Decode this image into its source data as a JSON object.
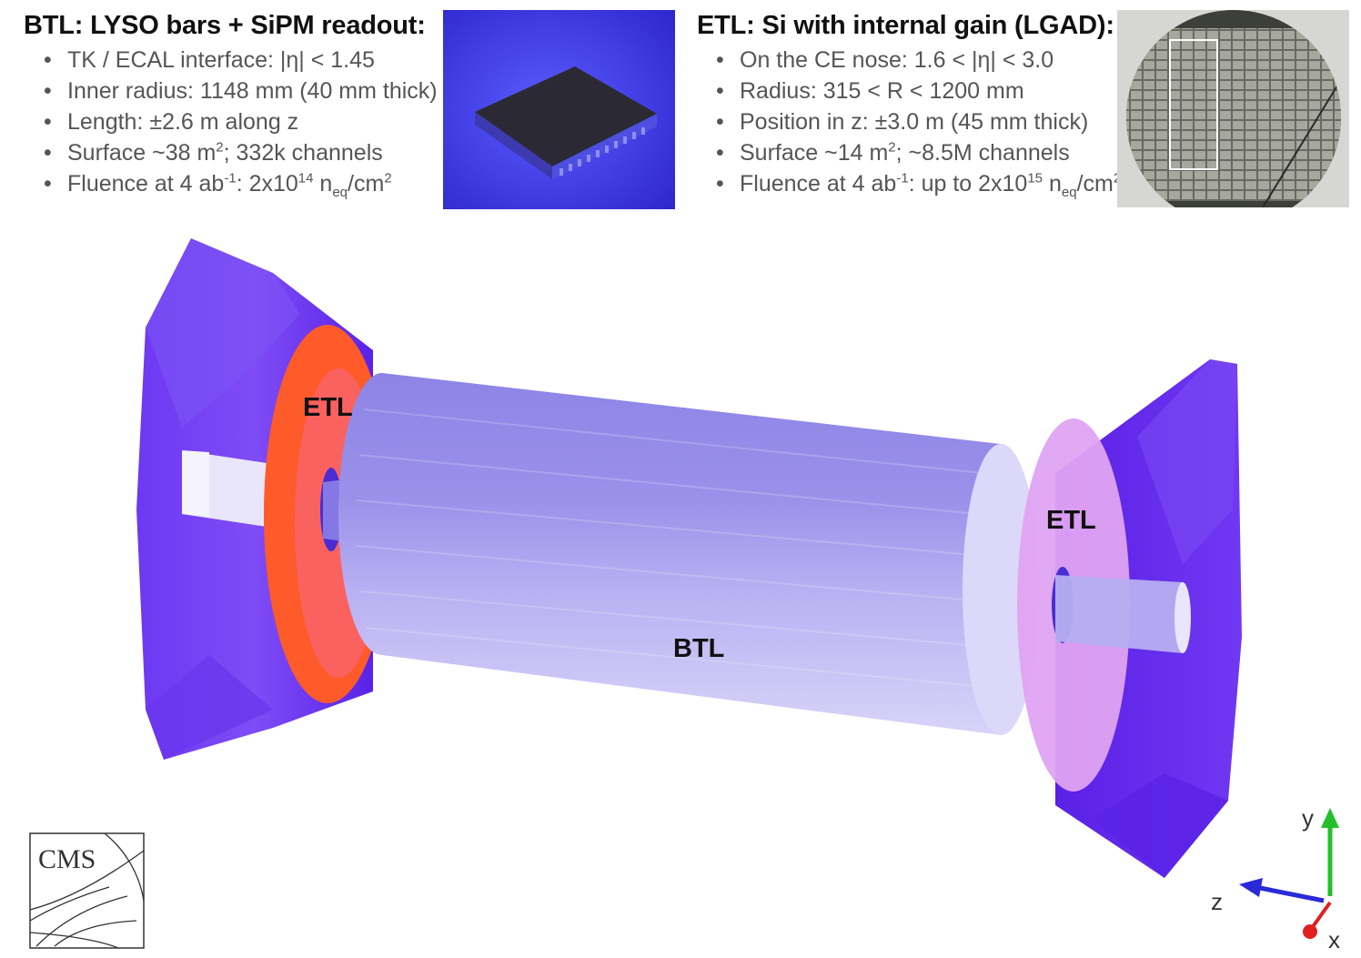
{
  "btl": {
    "title": "BTL: LYSO bars + SiPM readout:",
    "bullets": [
      {
        "text": "TK / ECAL interface: |η| < 1.45"
      },
      {
        "text": "Inner radius: 1148 mm (40 mm thick)"
      },
      {
        "text": "Length: ±2.6 m along z"
      },
      {
        "pre": "Surface ~38 m",
        "sup": "2",
        "post": "; 332k channels"
      },
      {
        "pre": "Fluence at 4 ab",
        "sup1": "-1",
        "mid": ": 2x10",
        "sup2": "14",
        "mid2": " n",
        "sub": "eq",
        "mid3": "/cm",
        "sup3": "2"
      }
    ]
  },
  "etl": {
    "title": "ETL: Si with internal gain (LGAD):",
    "bullets": [
      {
        "text": "On the CE nose: 1.6 < |η| < 3.0"
      },
      {
        "text": "Radius: 315 < R < 1200 mm"
      },
      {
        "text": "Position in z: ±3.0 m (45 mm thick)"
      },
      {
        "pre": "Surface ~14 m",
        "sup": "2",
        "post": "; ~8.5M channels"
      },
      {
        "pre": "Fluence at 4 ab",
        "sup1": "-1",
        "mid": ": up to 2x10",
        "sup2": "15",
        "mid2": " n",
        "sub": "eq",
        "mid3": "/cm",
        "sup3": "2"
      }
    ]
  },
  "diagram": {
    "label_etl_left": "ETL",
    "label_etl_right": "ETL",
    "label_btl": "BTL",
    "logo_text": "CMS",
    "axis_y": "y",
    "axis_z": "z",
    "axis_x": "x"
  },
  "colors": {
    "endcap": "#6a2ff0",
    "etl_left": "#ff5a2a",
    "etl_right": "#d9a6f5",
    "barrel": "#b6aef0",
    "axis_y": "#22c02a",
    "axis_z": "#2a2ad8",
    "axis_x": "#e02020"
  }
}
